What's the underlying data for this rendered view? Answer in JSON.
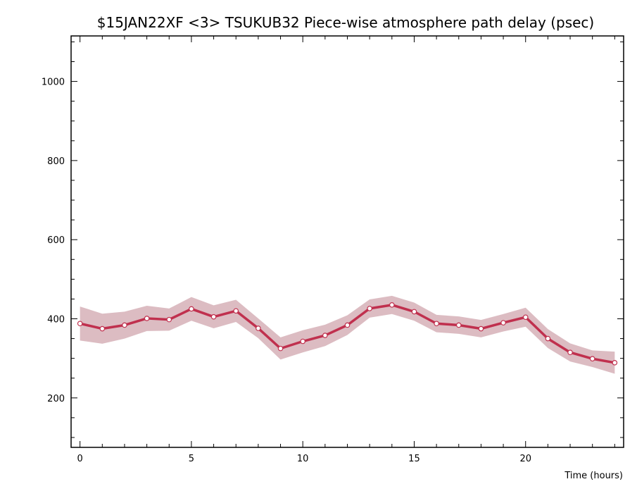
{
  "chart_data": {
    "type": "line",
    "title": "$15JAN22XF <3>  TSUKUB32  Piece-wise atmosphere path delay (psec)",
    "xlabel": "Time (hours)",
    "ylabel": "",
    "xlim": [
      -0.4,
      24.4
    ],
    "ylim": [
      75,
      1115
    ],
    "x_ticks": [
      0,
      5,
      10,
      15,
      20
    ],
    "y_ticks": [
      200,
      400,
      600,
      800,
      1000
    ],
    "grid": false,
    "legend": "none",
    "series": [
      {
        "x": [
          0,
          1,
          2,
          3,
          4,
          5,
          6,
          7,
          8,
          9,
          10,
          11,
          12,
          13,
          14,
          15,
          16,
          17,
          18,
          19,
          20,
          21,
          22,
          23,
          24
        ],
        "values": [
          388,
          375,
          384,
          401,
          398,
          425,
          405,
          420,
          376,
          325,
          343,
          358,
          384,
          426,
          435,
          418,
          388,
          384,
          375,
          390,
          404,
          350,
          315,
          299,
          289
        ],
        "error": [
          43,
          38,
          34,
          32,
          28,
          30,
          29,
          28,
          25,
          28,
          28,
          27,
          25,
          23,
          23,
          23,
          22,
          22,
          22,
          22,
          24,
          24,
          23,
          21,
          28
        ]
      }
    ],
    "colors": {
      "line": "#c0304e",
      "band": "#dcbcc2",
      "marker_fill": "#ffffff",
      "axis": "#000000"
    }
  }
}
